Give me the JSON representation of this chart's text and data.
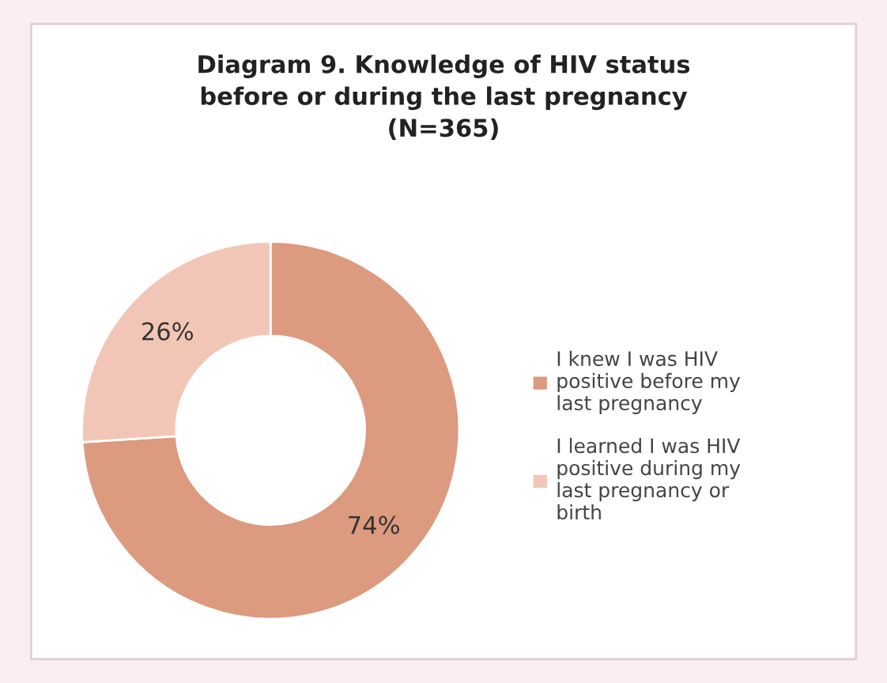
{
  "chart_data": {
    "type": "donut",
    "title": "Diagram 9. Knowledge of HIV status\nbefore or during the last pregnancy\n(N=365)",
    "categories": [
      "I knew I was HIV\npositive before my\nlast pregnancy",
      "I learned I was HIV\npositive during my\nlast pregnancy or\nbirth"
    ],
    "values": [
      74,
      26
    ],
    "colors": [
      "#dc9a7f",
      "#f2c6b6"
    ],
    "value_labels": [
      "74%",
      "26%"
    ],
    "legend": "right"
  }
}
